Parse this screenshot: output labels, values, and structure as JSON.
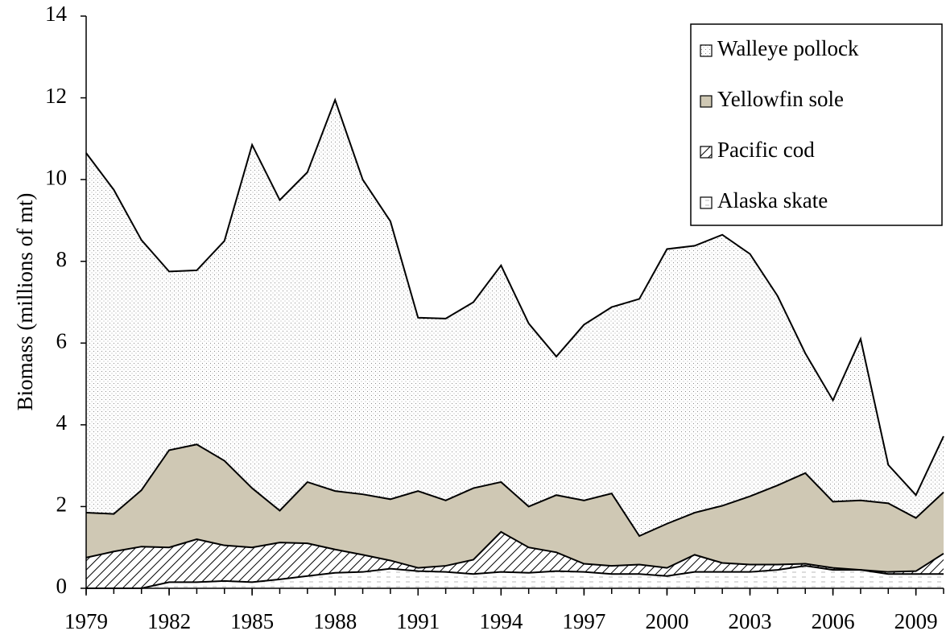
{
  "chart_data": {
    "type": "stacked-area",
    "y_label": "Biomass (millions of mt)",
    "x": [
      1979,
      1980,
      1981,
      1982,
      1983,
      1984,
      1985,
      1986,
      1987,
      1988,
      1989,
      1990,
      1991,
      1992,
      1993,
      1994,
      1995,
      1996,
      1997,
      1998,
      1999,
      2000,
      2001,
      2002,
      2003,
      2004,
      2005,
      2006,
      2007,
      2008,
      2009,
      2010
    ],
    "xlim": [
      1979,
      2010
    ],
    "xticks": [
      1979,
      1982,
      1985,
      1988,
      1991,
      1994,
      1997,
      2000,
      2003,
      2006,
      2009
    ],
    "ylim": [
      0,
      14
    ],
    "yticks": [
      0,
      2,
      4,
      6,
      8,
      10,
      12,
      14
    ],
    "legend": "upper right",
    "series": [
      {
        "name": "Alaska skate",
        "color": "#ffffff",
        "pattern": "dash",
        "values": [
          0,
          0,
          0,
          0.15,
          0.15,
          0.18,
          0.15,
          0.22,
          0.3,
          0.38,
          0.4,
          0.48,
          0.42,
          0.4,
          0.35,
          0.4,
          0.38,
          0.42,
          0.4,
          0.35,
          0.35,
          0.3,
          0.4,
          0.4,
          0.4,
          0.45,
          0.55,
          0.45,
          0.45,
          0.35,
          0.35,
          0.35
        ]
      },
      {
        "name": "Pacific cod",
        "color": "#ffffff",
        "pattern": "hatch",
        "values": [
          0.75,
          0.9,
          1.02,
          0.85,
          1.05,
          0.87,
          0.85,
          0.9,
          0.8,
          0.57,
          0.42,
          0.2,
          0.08,
          0.15,
          0.35,
          0.98,
          0.62,
          0.46,
          0.2,
          0.2,
          0.23,
          0.2,
          0.42,
          0.22,
          0.18,
          0.13,
          0.05,
          0.05,
          0,
          0.05,
          0.07,
          0.5
        ]
      },
      {
        "name": "Yellowfin sole",
        "color": "#cfc8b4",
        "pattern": "solid",
        "values": [
          1.1,
          0.92,
          1.38,
          2.38,
          2.32,
          2.07,
          1.45,
          0.78,
          1.5,
          1.43,
          1.48,
          1.5,
          1.88,
          1.6,
          1.75,
          1.22,
          1.0,
          1.4,
          1.55,
          1.77,
          0.7,
          1.08,
          1.03,
          1.4,
          1.67,
          1.94,
          2.22,
          1.62,
          1.7,
          1.68,
          1.3,
          1.5
        ]
      },
      {
        "name": "Walleye pollock",
        "color": "#ffffff",
        "pattern": "dots",
        "values": [
          8.8,
          7.93,
          6.12,
          4.37,
          4.26,
          5.38,
          8.4,
          7.6,
          7.58,
          9.57,
          7.7,
          6.8,
          4.24,
          4.45,
          4.55,
          5.3,
          4.48,
          3.39,
          4.3,
          4.56,
          5.8,
          6.72,
          6.53,
          6.63,
          5.93,
          4.63,
          2.93,
          2.48,
          3.95,
          0.94,
          0.56,
          1.37
        ]
      }
    ]
  }
}
